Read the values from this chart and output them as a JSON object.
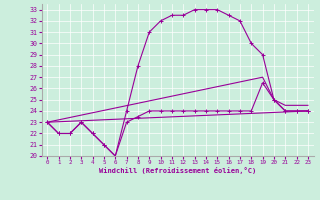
{
  "xlabel": "Windchill (Refroidissement éolien,°C)",
  "bg_color": "#cceedd",
  "line_color": "#990099",
  "xlim": [
    -0.5,
    23.5
  ],
  "ylim": [
    20,
    33.5
  ],
  "yticks": [
    20,
    21,
    22,
    23,
    24,
    25,
    26,
    27,
    28,
    29,
    30,
    31,
    32,
    33
  ],
  "xticks": [
    0,
    1,
    2,
    3,
    4,
    5,
    6,
    7,
    8,
    9,
    10,
    11,
    12,
    13,
    14,
    15,
    16,
    17,
    18,
    19,
    20,
    21,
    22,
    23
  ],
  "line1_x": [
    0,
    1,
    2,
    3,
    4,
    5,
    6,
    7,
    8,
    9,
    10,
    11,
    12,
    13,
    14,
    15,
    16,
    17,
    18,
    19,
    20,
    21,
    22,
    23
  ],
  "line1_y": [
    23,
    22,
    22,
    23,
    22,
    21,
    20,
    24,
    28,
    31,
    32,
    32.5,
    32.5,
    33,
    33,
    33,
    32.5,
    32,
    30,
    29,
    25,
    24,
    24,
    24
  ],
  "line2_x": [
    0,
    1,
    2,
    3,
    4,
    5,
    6,
    7,
    8,
    9,
    10,
    11,
    12,
    13,
    14,
    15,
    16,
    17,
    18,
    19,
    20,
    21,
    22,
    23
  ],
  "line2_y": [
    23,
    22,
    22,
    23,
    22,
    21,
    20,
    23,
    23.5,
    24,
    24,
    24,
    24,
    24,
    24,
    24,
    24,
    24,
    24,
    26.5,
    25,
    24,
    24,
    24
  ],
  "line3_x": [
    0,
    23
  ],
  "line3_y": [
    23,
    24
  ],
  "line4_x": [
    0,
    19,
    20,
    21,
    22,
    23
  ],
  "line4_y": [
    23,
    27,
    25,
    24.5,
    24.5,
    24.5
  ]
}
